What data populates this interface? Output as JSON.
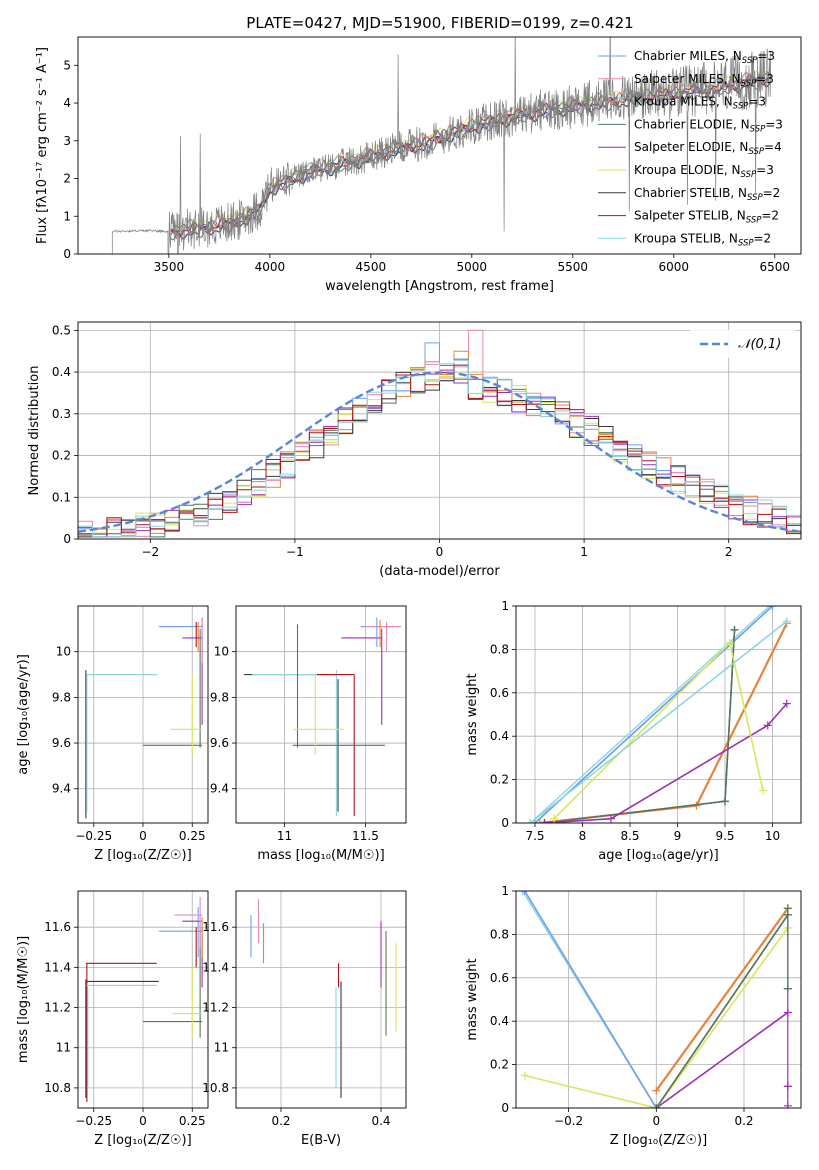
{
  "figure_title": "PLATE=0427, MJD=51900, FIBERID=0199, z=0.421",
  "colors": {
    "Chabrier MILES": "#6f9ff1",
    "Salpeter MILES": "#e58ab6",
    "Kroupa MILES": "#e8823a",
    "Chabrier ELODIE": "#55765e",
    "Salpeter ELODIE": "#9b30b5",
    "Kroupa ELODIE": "#d5e85a",
    "Chabrier STELIB": "#3a3a3a",
    "Salpeter STELIB": "#b01515",
    "Kroupa STELIB": "#8fd6e0",
    "data": "#808080",
    "gaussian": "#5a86d6"
  },
  "chart_data": [
    {
      "type": "line",
      "title": "",
      "xlabel": "wavelength [Angstrom, rest frame]",
      "ylabel": "Flux [fλ10⁻¹⁷ erg cm⁻² s⁻¹ A⁻¹]",
      "xlim": [
        3050,
        6630
      ],
      "ylim": [
        0,
        5.75
      ],
      "xticks": [
        3500,
        4000,
        4500,
        5000,
        5500,
        6000,
        6500
      ],
      "yticks": [
        0,
        1,
        2,
        3,
        4,
        5
      ],
      "grid": false,
      "legend_position": "right",
      "legend": [
        {
          "label": "Chabrier MILES, N",
          "sub": "SSP",
          "suffix": "=3",
          "color": "#6f9ff1"
        },
        {
          "label": "Salpeter MILES, N",
          "sub": "SSP",
          "suffix": "=3",
          "color": "#e58ab6"
        },
        {
          "label": "Kroupa MILES, N",
          "sub": "SSP",
          "suffix": "=3",
          "color": "#e8823a"
        },
        {
          "label": "Chabrier ELODIE, N",
          "sub": "SSP",
          "suffix": "=3",
          "color": "#55765e"
        },
        {
          "label": "Salpeter ELODIE, N",
          "sub": "SSP",
          "suffix": "=4",
          "color": "#9b30b5"
        },
        {
          "label": "Kroupa ELODIE, N",
          "sub": "SSP",
          "suffix": "=3",
          "color": "#d5e85a"
        },
        {
          "label": "Chabrier STELIB, N",
          "sub": "SSP",
          "suffix": "=2",
          "color": "#3a3a3a"
        },
        {
          "label": "Salpeter STELIB, N",
          "sub": "SSP",
          "suffix": "=2",
          "color": "#b01515"
        },
        {
          "label": "Kroupa STELIB, N",
          "sub": "SSP",
          "suffix": "=2",
          "color": "#8fd6e0"
        }
      ],
      "continuum": {
        "x": [
          3220,
          3400,
          3500,
          3700,
          3850,
          3950,
          4000,
          4200,
          4400,
          4600,
          4800,
          5000,
          5200,
          5400,
          5600,
          5800,
          6000,
          6200,
          6400,
          6480
        ],
        "y": [
          0.6,
          0.62,
          0.6,
          0.72,
          0.9,
          1.2,
          1.75,
          2.2,
          2.45,
          2.75,
          3.0,
          3.4,
          3.65,
          3.85,
          4.0,
          4.15,
          4.25,
          4.4,
          4.6,
          4.7
        ]
      }
    },
    {
      "type": "histogram",
      "title": "",
      "xlabel": "(data-model)/error",
      "ylabel": "Normed distribution",
      "xlim": [
        -2.5,
        2.5
      ],
      "ylim": [
        0,
        0.52
      ],
      "xticks": [
        -2,
        -1,
        0,
        1,
        2
      ],
      "yticks": [
        0.0,
        0.1,
        0.2,
        0.3,
        0.4,
        0.5
      ],
      "grid": true,
      "legend_position": "top-right",
      "legend": [
        {
          "label": "𝒩(0,1)",
          "color": "#5a86d6",
          "style": "dashed"
        }
      ],
      "bin_width": 0.1,
      "peak_bins": [
        {
          "x": 0.0,
          "y": 0.47
        },
        {
          "x": 0.3,
          "y": 0.5
        },
        {
          "x": 0.2,
          "y": 0.45
        }
      ]
    },
    {
      "type": "scatter",
      "xlabel": "Z [log₁₀(Z/Z☉)]",
      "ylabel": "age  [log₁₀(age/yr)]",
      "xlim": [
        -0.33,
        0.33
      ],
      "ylim": [
        9.25,
        10.2
      ],
      "xticks": [
        -0.25,
        0.0,
        0.25
      ],
      "yticks": [
        9.4,
        9.6,
        9.8,
        10.0
      ],
      "grid": true
    },
    {
      "type": "scatter",
      "xlabel": "mass [log₁₀(M/M☉)]",
      "ylabel": "",
      "xlim": [
        10.7,
        11.75
      ],
      "ylim": [
        9.25,
        10.2
      ],
      "xticks": [
        11.0,
        11.5
      ],
      "yticks": [
        9.4,
        9.6,
        9.8,
        10.0
      ],
      "grid": true
    },
    {
      "type": "line",
      "xlabel": "age  [log₁₀(age/yr)]",
      "ylabel": "mass weight",
      "xlim": [
        7.3,
        10.3
      ],
      "ylim": [
        0,
        1.0
      ],
      "xticks": [
        7.5,
        8.0,
        8.5,
        9.0,
        9.5,
        10.0
      ],
      "yticks": [
        0.0,
        0.2,
        0.4,
        0.6,
        0.8,
        1.0
      ],
      "grid": true,
      "series": [
        {
          "name": "Chabrier MILES",
          "x": [
            7.5,
            10.0
          ],
          "y": [
            0.0,
            1.0
          ]
        },
        {
          "name": "Kroupa MILES",
          "x": [
            7.55,
            9.2,
            10.15
          ],
          "y": [
            0.0,
            0.08,
            0.92
          ]
        },
        {
          "name": "Chabrier ELODIE",
          "x": [
            7.6,
            9.5,
            9.6
          ],
          "y": [
            0.0,
            0.1,
            0.89
          ]
        },
        {
          "name": "Salpeter ELODIE",
          "x": [
            7.6,
            8.3,
            9.95,
            10.15
          ],
          "y": [
            0.0,
            0.02,
            0.45,
            0.55
          ]
        },
        {
          "name": "Kroupa ELODIE",
          "x": [
            7.7,
            9.55,
            9.9
          ],
          "y": [
            0.02,
            0.83,
            0.15
          ]
        },
        {
          "name": "Kroupa STELIB",
          "x": [
            7.45,
            10.15
          ],
          "y": [
            0.0,
            0.93
          ]
        }
      ]
    },
    {
      "type": "scatter",
      "xlabel": "Z [log₁₀(Z/Z☉)]",
      "ylabel": "mass [log₁₀(M/M☉)]",
      "xlim": [
        -0.33,
        0.33
      ],
      "ylim": [
        10.7,
        11.78
      ],
      "xticks": [
        -0.25,
        0.0,
        0.25
      ],
      "yticks": [
        10.8,
        11.0,
        11.2,
        11.4,
        11.6
      ],
      "grid": true
    },
    {
      "type": "scatter",
      "xlabel": "E(B-V)",
      "ylabel": "",
      "xlim": [
        0.11,
        0.45
      ],
      "ylim": [
        10.7,
        11.78
      ],
      "xticks": [
        0.2,
        0.4
      ],
      "yticks": [
        10.8,
        11.0,
        11.2,
        11.4,
        11.6
      ],
      "grid": true
    },
    {
      "type": "line",
      "xlabel": "Z [log₁₀(Z/Z☉)]",
      "ylabel": "mass weight",
      "xlim": [
        -0.32,
        0.33
      ],
      "ylim": [
        0,
        1.0
      ],
      "xticks": [
        -0.2,
        0.0,
        0.2
      ],
      "yticks": [
        0.0,
        0.2,
        0.4,
        0.6,
        0.8,
        1.0
      ],
      "grid": true,
      "series": [
        {
          "name": "Chabrier MILES",
          "x": [
            -0.3,
            0.0
          ],
          "y": [
            1.0,
            0.0
          ]
        },
        {
          "name": "Kroupa MILES",
          "x": [
            0.0,
            0.3
          ],
          "y": [
            0.08,
            0.92
          ]
        },
        {
          "name": "Salpeter ELODIE",
          "x": [
            0.0,
            0.3
          ],
          "y": [
            0.0,
            0.44
          ]
        },
        {
          "name": "Kroupa ELODIE",
          "x": [
            -0.3,
            0.0,
            0.3
          ],
          "y": [
            0.15,
            0.0,
            0.83
          ]
        },
        {
          "name": "Chabrier ELODIE",
          "x": [
            0.0,
            0.3
          ],
          "y": [
            0.0,
            0.89
          ]
        }
      ]
    }
  ]
}
